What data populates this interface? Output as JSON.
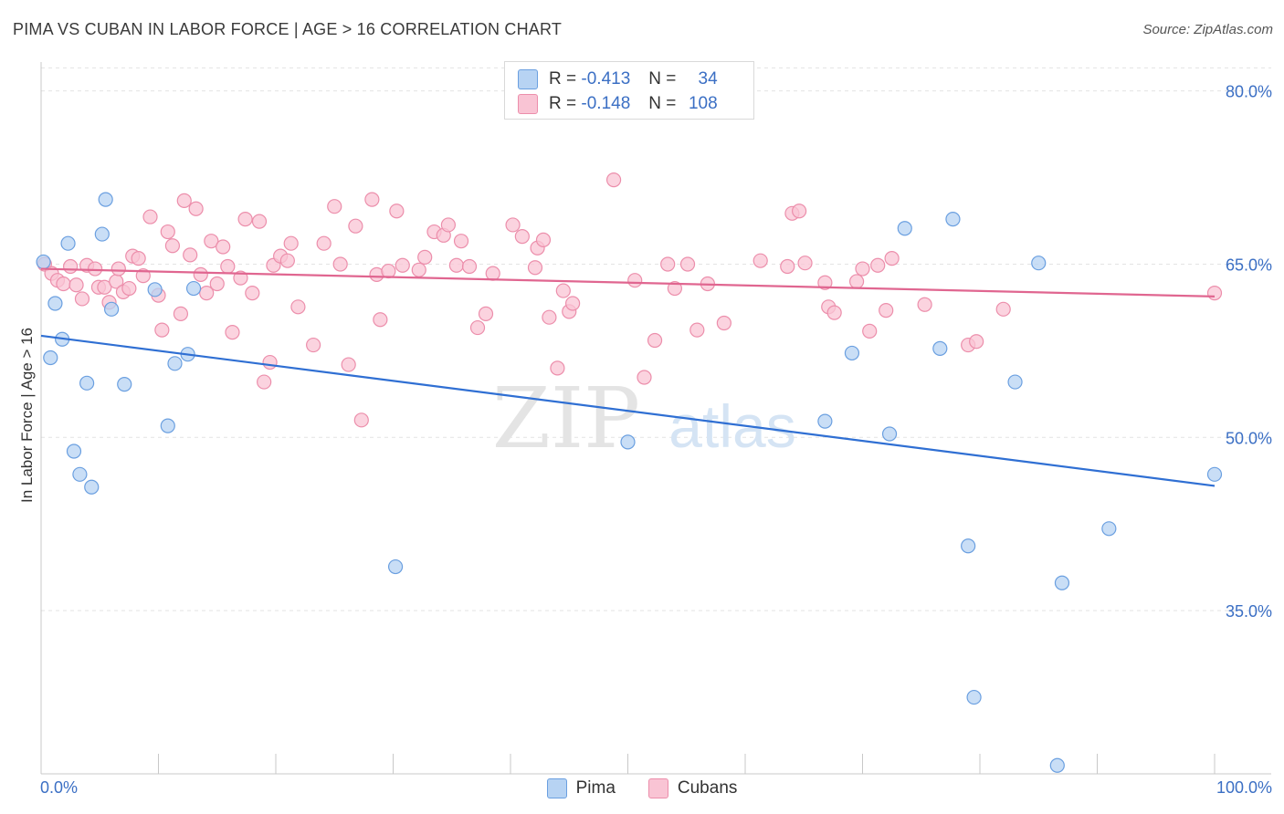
{
  "title": "PIMA VS CUBAN IN LABOR FORCE | AGE > 16 CORRELATION CHART",
  "source": "Source: ZipAtlas.com",
  "watermark": {
    "zip": "ZIP",
    "atlas": "atlas"
  },
  "legend_top": {
    "rows": [
      {
        "r_label": "R =",
        "r_value": "-0.413",
        "n_label": "N =",
        "n_value": "34"
      },
      {
        "r_label": "R =",
        "r_value": "-0.148",
        "n_label": "N =",
        "n_value": "108"
      }
    ]
  },
  "colors": {
    "pima_fill": "#b7d3f3",
    "pima_stroke": "#6a9fe0",
    "pima_line": "#2f6fd3",
    "cuban_fill": "#f9c4d4",
    "cuban_stroke": "#ec8eab",
    "cuban_line": "#e06690",
    "tick_label": "#3b6fc4",
    "grid": "#e3e3e3"
  },
  "chart_data": {
    "type": "scatter",
    "title": "PIMA VS CUBAN IN LABOR FORCE | AGE > 16 CORRELATION CHART",
    "xlabel": "",
    "ylabel": "In Labor Force | Age > 16",
    "xlim": [
      0,
      100
    ],
    "ylim": [
      21.5,
      82.5
    ],
    "x_tick_labels": [
      "0.0%",
      "100.0%"
    ],
    "y_ticks": [
      35,
      50,
      65,
      80
    ],
    "y_tick_labels": [
      "35.0%",
      "50.0%",
      "65.0%",
      "80.0%"
    ],
    "legend_position": "bottom-center",
    "series": [
      {
        "name": "Pima",
        "r": -0.413,
        "n": 34,
        "trend": {
          "x": [
            0,
            100
          ],
          "y": [
            58.8,
            45.8
          ]
        },
        "points": [
          [
            0.2,
            65.2
          ],
          [
            0.8,
            56.9
          ],
          [
            1.2,
            61.6
          ],
          [
            1.8,
            58.5
          ],
          [
            2.3,
            66.8
          ],
          [
            2.8,
            48.8
          ],
          [
            3.3,
            46.8
          ],
          [
            3.9,
            54.7
          ],
          [
            4.3,
            45.7
          ],
          [
            5.2,
            67.6
          ],
          [
            5.5,
            70.6
          ],
          [
            6.0,
            61.1
          ],
          [
            7.1,
            54.6
          ],
          [
            9.7,
            62.8
          ],
          [
            10.8,
            51.0
          ],
          [
            11.4,
            56.4
          ],
          [
            12.5,
            57.2
          ],
          [
            13.0,
            62.9
          ],
          [
            30.2,
            38.8
          ],
          [
            50.0,
            49.6
          ],
          [
            66.8,
            51.4
          ],
          [
            69.1,
            57.3
          ],
          [
            72.3,
            50.3
          ],
          [
            73.6,
            68.1
          ],
          [
            76.6,
            57.7
          ],
          [
            77.7,
            68.9
          ],
          [
            79.0,
            40.6
          ],
          [
            79.5,
            27.5
          ],
          [
            83.0,
            54.8
          ],
          [
            85.0,
            65.1
          ],
          [
            86.6,
            21.6
          ],
          [
            87.0,
            37.4
          ],
          [
            91.0,
            42.1
          ],
          [
            100.0,
            46.8
          ]
        ]
      },
      {
        "name": "Cubans",
        "r": -0.148,
        "n": 108,
        "trend": {
          "x": [
            0,
            100
          ],
          "y": [
            64.6,
            62.2
          ]
        },
        "points": [
          [
            0.3,
            65.0
          ],
          [
            0.9,
            64.2
          ],
          [
            1.4,
            63.6
          ],
          [
            1.9,
            63.3
          ],
          [
            2.5,
            64.8
          ],
          [
            3.0,
            63.2
          ],
          [
            3.5,
            62.0
          ],
          [
            3.9,
            64.9
          ],
          [
            4.6,
            64.6
          ],
          [
            4.9,
            63.0
          ],
          [
            5.4,
            63.0
          ],
          [
            5.8,
            61.7
          ],
          [
            6.4,
            63.5
          ],
          [
            6.6,
            64.6
          ],
          [
            7.0,
            62.6
          ],
          [
            7.5,
            62.9
          ],
          [
            7.8,
            65.7
          ],
          [
            8.3,
            65.5
          ],
          [
            8.7,
            64.0
          ],
          [
            9.3,
            69.1
          ],
          [
            10.0,
            62.3
          ],
          [
            10.3,
            59.3
          ],
          [
            10.8,
            67.8
          ],
          [
            11.2,
            66.6
          ],
          [
            11.9,
            60.7
          ],
          [
            12.2,
            70.5
          ],
          [
            12.7,
            65.8
          ],
          [
            13.2,
            69.8
          ],
          [
            13.6,
            64.1
          ],
          [
            14.1,
            62.5
          ],
          [
            14.5,
            67.0
          ],
          [
            15.0,
            63.3
          ],
          [
            15.5,
            66.5
          ],
          [
            15.9,
            64.8
          ],
          [
            16.3,
            59.1
          ],
          [
            17.0,
            63.8
          ],
          [
            17.4,
            68.9
          ],
          [
            18.0,
            62.5
          ],
          [
            18.6,
            68.7
          ],
          [
            19.0,
            54.8
          ],
          [
            19.5,
            56.5
          ],
          [
            19.8,
            64.9
          ],
          [
            20.4,
            65.7
          ],
          [
            21.0,
            65.3
          ],
          [
            21.3,
            66.8
          ],
          [
            21.9,
            61.3
          ],
          [
            23.2,
            58.0
          ],
          [
            24.1,
            66.8
          ],
          [
            25.0,
            70.0
          ],
          [
            25.5,
            65.0
          ],
          [
            26.2,
            56.3
          ],
          [
            26.8,
            68.3
          ],
          [
            27.3,
            51.5
          ],
          [
            28.2,
            70.6
          ],
          [
            28.6,
            64.1
          ],
          [
            28.9,
            60.2
          ],
          [
            29.6,
            64.4
          ],
          [
            30.3,
            69.6
          ],
          [
            30.8,
            64.9
          ],
          [
            32.2,
            64.5
          ],
          [
            32.7,
            65.6
          ],
          [
            33.5,
            67.8
          ],
          [
            34.3,
            67.5
          ],
          [
            34.7,
            68.4
          ],
          [
            35.4,
            64.9
          ],
          [
            35.8,
            67.0
          ],
          [
            36.5,
            64.8
          ],
          [
            37.2,
            59.5
          ],
          [
            37.9,
            60.7
          ],
          [
            38.5,
            64.2
          ],
          [
            40.2,
            68.4
          ],
          [
            41.0,
            67.4
          ],
          [
            42.1,
            64.7
          ],
          [
            42.3,
            66.4
          ],
          [
            42.8,
            67.1
          ],
          [
            43.3,
            60.4
          ],
          [
            44.0,
            56.0
          ],
          [
            44.5,
            62.7
          ],
          [
            45.0,
            60.9
          ],
          [
            45.3,
            61.6
          ],
          [
            48.8,
            72.3
          ],
          [
            50.6,
            63.6
          ],
          [
            51.4,
            55.2
          ],
          [
            52.3,
            58.4
          ],
          [
            53.4,
            65.0
          ],
          [
            54.0,
            62.9
          ],
          [
            55.1,
            65.0
          ],
          [
            55.9,
            59.3
          ],
          [
            56.8,
            63.3
          ],
          [
            58.2,
            59.9
          ],
          [
            61.3,
            65.3
          ],
          [
            63.6,
            64.8
          ],
          [
            64.0,
            69.4
          ],
          [
            64.6,
            69.6
          ],
          [
            65.1,
            65.1
          ],
          [
            66.8,
            63.4
          ],
          [
            67.1,
            61.3
          ],
          [
            67.6,
            60.8
          ],
          [
            69.5,
            63.5
          ],
          [
            70.0,
            64.6
          ],
          [
            70.6,
            59.2
          ],
          [
            71.3,
            64.9
          ],
          [
            72.0,
            61.0
          ],
          [
            72.5,
            65.5
          ],
          [
            75.3,
            61.5
          ],
          [
            79.0,
            58.0
          ],
          [
            79.7,
            58.3
          ],
          [
            82.0,
            61.1
          ],
          [
            100.0,
            62.5
          ]
        ]
      }
    ]
  }
}
